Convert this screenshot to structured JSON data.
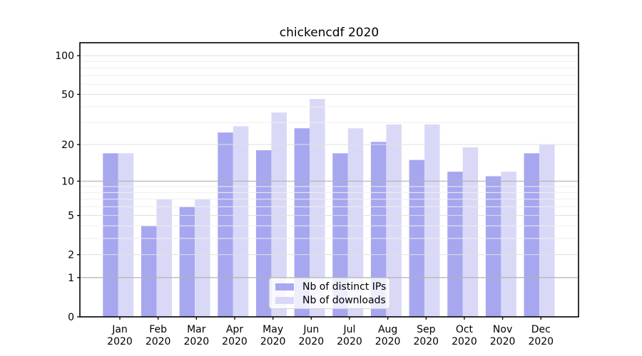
{
  "chart_data": {
    "type": "bar",
    "title": "chickencdf 2020",
    "categories": [
      [
        "Jan",
        "2020"
      ],
      [
        "Feb",
        "2020"
      ],
      [
        "Mar",
        "2020"
      ],
      [
        "Apr",
        "2020"
      ],
      [
        "May",
        "2020"
      ],
      [
        "Jun",
        "2020"
      ],
      [
        "Jul",
        "2020"
      ],
      [
        "Aug",
        "2020"
      ],
      [
        "Sep",
        "2020"
      ],
      [
        "Oct",
        "2020"
      ],
      [
        "Nov",
        "2020"
      ],
      [
        "Dec",
        "2020"
      ]
    ],
    "series": [
      {
        "name": "Nb of distinct IPs",
        "color": "#a7a7f0",
        "values": [
          17,
          4,
          6,
          25,
          18,
          27,
          17,
          21,
          15,
          12,
          11,
          17
        ]
      },
      {
        "name": "Nb of downloads",
        "color": "#d9d9f7",
        "values": [
          17,
          7,
          7,
          28,
          36,
          46,
          27,
          29,
          29,
          19,
          12,
          20
        ]
      }
    ],
    "yticks": [
      0,
      1,
      2,
      5,
      10,
      20,
      50,
      100
    ],
    "axis": {
      "scale": "log10(1+v)",
      "ylim": [
        0,
        126
      ],
      "grid": "on",
      "legend_position": "lower center"
    },
    "colors": {
      "grid_major": "#b2b2b2",
      "grid_labeled": "#dfdfdf",
      "grid_minor": "#efefef",
      "spine": "#000000",
      "text": "#000000",
      "background": "#ffffff"
    }
  }
}
